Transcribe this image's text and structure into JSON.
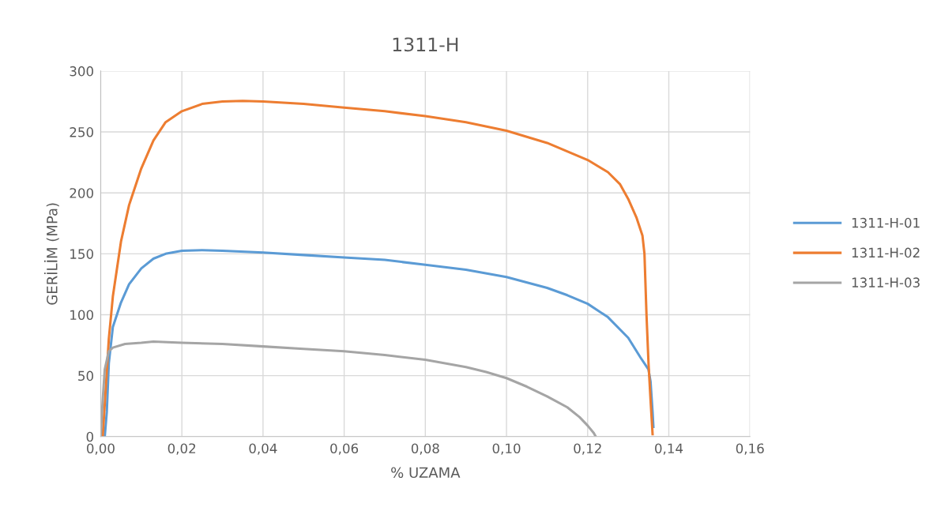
{
  "chart_data": {
    "type": "line",
    "title": "1311-H",
    "xlabel": "% UZAMA",
    "ylabel": "GERİLİM (MPa)",
    "xlim": [
      0,
      0.16
    ],
    "xticks": [
      {
        "value": 0,
        "label": "0,00"
      },
      {
        "value": 0.02,
        "label": "0,02"
      },
      {
        "value": 0.04,
        "label": "0,04"
      },
      {
        "value": 0.06,
        "label": "0,06"
      },
      {
        "value": 0.08,
        "label": "0,08"
      },
      {
        "value": 0.1,
        "label": "0,10"
      },
      {
        "value": 0.12,
        "label": "0,12"
      },
      {
        "value": 0.14,
        "label": "0,14"
      },
      {
        "value": 0.16,
        "label": "0,16"
      }
    ],
    "ylim": [
      0,
      300
    ],
    "yticks": [
      0,
      50,
      100,
      150,
      200,
      250,
      300
    ],
    "grid": true,
    "legend": "right",
    "marker": "none",
    "line_style": "solid",
    "series": [
      {
        "name": "1311-H-01",
        "color": "#5b9bd5",
        "x": [
          0.001,
          0.0015,
          0.002,
          0.003,
          0.005,
          0.007,
          0.01,
          0.013,
          0.016,
          0.02,
          0.025,
          0.03,
          0.04,
          0.05,
          0.06,
          0.07,
          0.08,
          0.09,
          0.1,
          0.11,
          0.115,
          0.12,
          0.125,
          0.13,
          0.133,
          0.135,
          0.1355,
          0.136,
          0.1362
        ],
        "values": [
          0,
          20,
          60,
          90,
          110,
          125,
          138,
          146,
          150,
          152.5,
          153,
          152.5,
          151,
          149,
          147,
          145,
          141,
          137,
          131,
          122,
          116,
          109,
          98,
          81,
          65,
          55,
          45,
          20,
          8
        ]
      },
      {
        "name": "1311-H-02",
        "color": "#ed7d31",
        "x": [
          0.0005,
          0.002,
          0.003,
          0.005,
          0.007,
          0.01,
          0.013,
          0.016,
          0.02,
          0.025,
          0.03,
          0.035,
          0.04,
          0.05,
          0.06,
          0.07,
          0.08,
          0.09,
          0.1,
          0.11,
          0.12,
          0.125,
          0.128,
          0.13,
          0.132,
          0.1335,
          0.134,
          0.1345,
          0.135,
          0.1355,
          0.136
        ],
        "values": [
          0,
          80,
          115,
          160,
          190,
          220,
          243,
          258,
          267,
          273,
          275,
          275.5,
          275,
          273,
          270,
          267,
          263,
          258,
          251,
          241,
          227,
          217,
          207,
          195,
          180,
          165,
          150,
          100,
          60,
          30,
          2
        ]
      },
      {
        "name": "1311-H-03",
        "color": "#a5a5a5",
        "x": [
          0,
          0.0005,
          0.001,
          0.002,
          0.003,
          0.006,
          0.01,
          0.013,
          0.02,
          0.03,
          0.04,
          0.05,
          0.06,
          0.07,
          0.08,
          0.09,
          0.095,
          0.1,
          0.105,
          0.11,
          0.115,
          0.118,
          0.12,
          0.1215,
          0.122
        ],
        "values": [
          0,
          30,
          55,
          70,
          73,
          76,
          77,
          78,
          77,
          76,
          74,
          72,
          70,
          67,
          63,
          57,
          53,
          48,
          41,
          33,
          24,
          16,
          9,
          3,
          0
        ]
      }
    ]
  }
}
